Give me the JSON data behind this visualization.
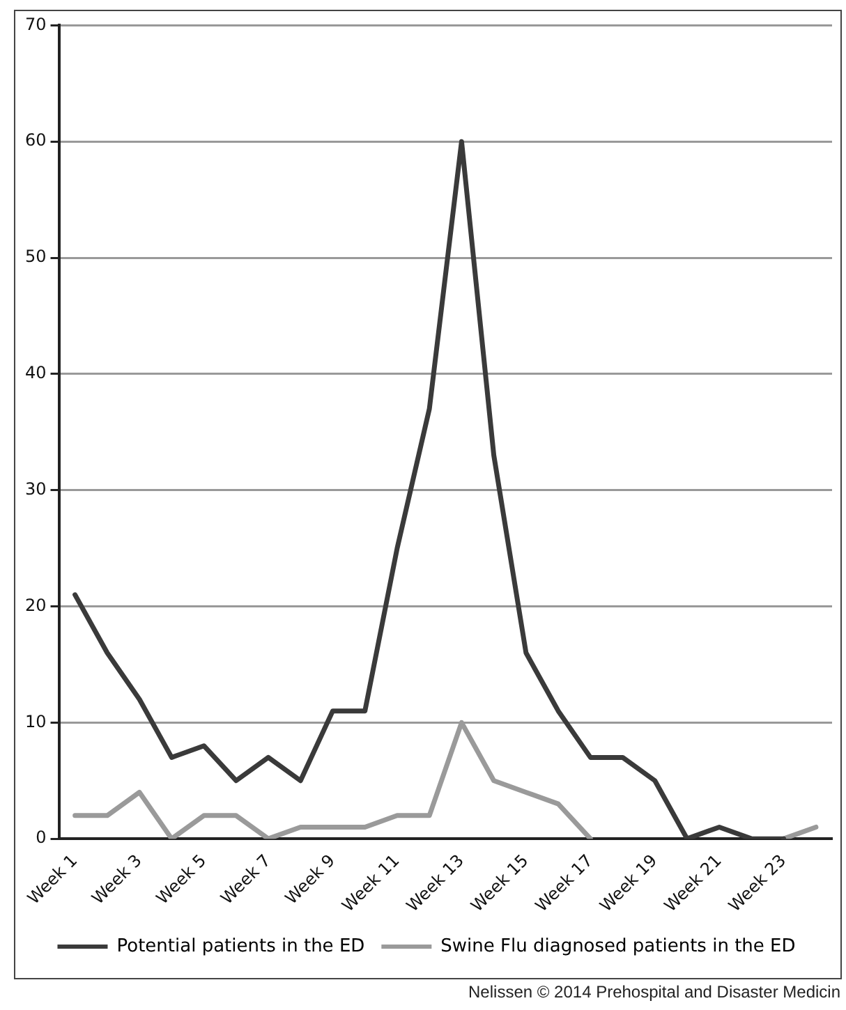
{
  "chart_data": {
    "type": "line",
    "categories": [
      "Week 1",
      null,
      "Week 3",
      null,
      "Week 5",
      null,
      "Week 7",
      null,
      "Week 9",
      null,
      "Week 11",
      null,
      "Week 13",
      null,
      "Week 15",
      null,
      "Week 17",
      null,
      "Week 19",
      null,
      "Week 21",
      null,
      "Week 23",
      null
    ],
    "series": [
      {
        "name": "Potential patients in the ED",
        "color": "#3a3a3a",
        "values": [
          21,
          16,
          12,
          7,
          8,
          5,
          7,
          5,
          11,
          11,
          25,
          37,
          60,
          33,
          16,
          11,
          7,
          7,
          5,
          0,
          1,
          0,
          0,
          null
        ]
      },
      {
        "name": "Swine Flu diagnosed patients in the ED",
        "color": "#9a9a9a",
        "values": [
          2,
          2,
          4,
          0,
          2,
          2,
          0,
          1,
          1,
          1,
          2,
          2,
          10,
          5,
          4,
          3,
          0,
          null,
          null,
          null,
          null,
          null,
          0,
          1
        ]
      }
    ],
    "ylim": [
      0,
      70
    ],
    "yticks": [
      0,
      10,
      20,
      30,
      40,
      50,
      60,
      70
    ],
    "grid": "y",
    "legend": "bottom",
    "marker": "none",
    "line_style": "solid",
    "annotations": [
      "Nelissen © 2014 Prehospital and Disaster Medicin"
    ]
  }
}
